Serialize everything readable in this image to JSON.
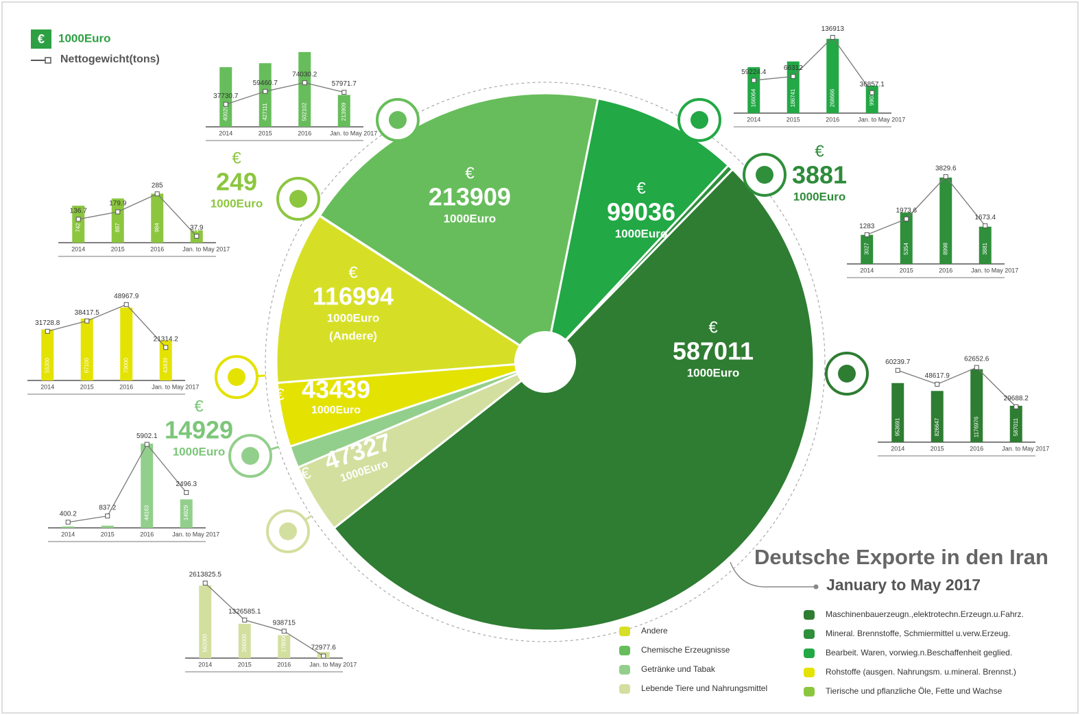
{
  "chart_data": {
    "type": "pie",
    "title": "Deutsche Exporte in den Iran",
    "subtitle": "January to May 2017",
    "currency": "€",
    "unit": "1000Euro",
    "line_legend": "Nettogewicht(tons)",
    "categories": [
      "Chemische Erzeugnisse",
      "Bearbeit. Waren, vorwieg.n.Beschaffenheit geglied.",
      "Mineral. Brennstoffe, Schmiermittel u.verw.Erzeug.",
      "Maschinenbauerzeugn.,elektrotechn.Erzeugn.u.Fahrz.",
      "Lebende Tiere und Nahrungsmittel",
      "Getränke und Tabak",
      "Rohstoffe (ausgen. Nahrungsm. u.mineral. Brennst.)",
      "Andere",
      "Tierische und pflanzliche Öle, Fette und Wachse"
    ],
    "values": [
      213909,
      99036,
      3881,
      587011,
      47327,
      14929,
      43439,
      116994,
      249
    ],
    "colors": [
      "#67bd5b",
      "#22a845",
      "#2f8f3b",
      "#2e7d32",
      "#d3df9f",
      "#93cf8c",
      "#e4e200",
      "#d6df26",
      "#8cc63f"
    ],
    "slice_notes": [
      null,
      null,
      null,
      null,
      null,
      null,
      null,
      "(Andere)",
      null
    ],
    "periods": [
      "2014",
      "2015",
      "2016",
      "Jan. to May 2017"
    ],
    "breakdown": [
      {
        "values": [
          400296,
          427111,
          502102,
          213909
        ],
        "tons": [
          37730.7,
          59460.7,
          74030.2,
          57971.7
        ],
        "ylim": [
          0,
          520000
        ],
        "y2lim": [
          0,
          130000
        ]
      },
      {
        "values": [
          166064,
          186741,
          268666,
          99036
        ],
        "tons": [
          59224.4,
          66312,
          136913,
          36857.1
        ],
        "ylim": [
          0,
          280000
        ],
        "y2lim": [
          0,
          140000
        ]
      },
      {
        "values": [
          3027,
          5354,
          8998,
          3881
        ],
        "tons": [
          1283,
          1973.6,
          3829.6,
          1673.4
        ],
        "ylim": [
          0,
          9500
        ],
        "y2lim": [
          0,
          4000
        ]
      },
      {
        "values": [
          953691,
          826647,
          1176976,
          587011
        ],
        "tons": [
          60239.7,
          48617.9,
          62652.6,
          29688.2
        ],
        "ylim": [
          0,
          1250000
        ],
        "y2lim": [
          0,
          65000
        ]
      },
      {
        "values": [
          562000,
          266000,
          178000,
          47327
        ],
        "tons": [
          2613825.5,
          1326585.1,
          938715,
          72977.6
        ],
        "ylim": [
          0,
          600000
        ],
        "y2lim": [
          0,
          2700000
        ]
      },
      {
        "values": [
          727,
          1152,
          44163,
          14929
        ],
        "tons": [
          400.2,
          837.2,
          5902.1,
          2496.3
        ],
        "ylim": [
          0,
          46000
        ],
        "y2lim": [
          0,
          6200
        ]
      },
      {
        "values": [
          55300,
          67100,
          79000,
          43439
        ],
        "tons": [
          31728.8,
          38417.5,
          48967.9,
          21314.2
        ],
        "ylim": [
          0,
          84000
        ],
        "y2lim": [
          0,
          50000
        ]
      },
      null,
      {
        "values": [
          742,
          887,
          984,
          249
        ],
        "tons": [
          136.7,
          179.9,
          285,
          37.9
        ],
        "ylim": [
          0,
          1100
        ],
        "y2lim": [
          0,
          320
        ]
      }
    ]
  }
}
